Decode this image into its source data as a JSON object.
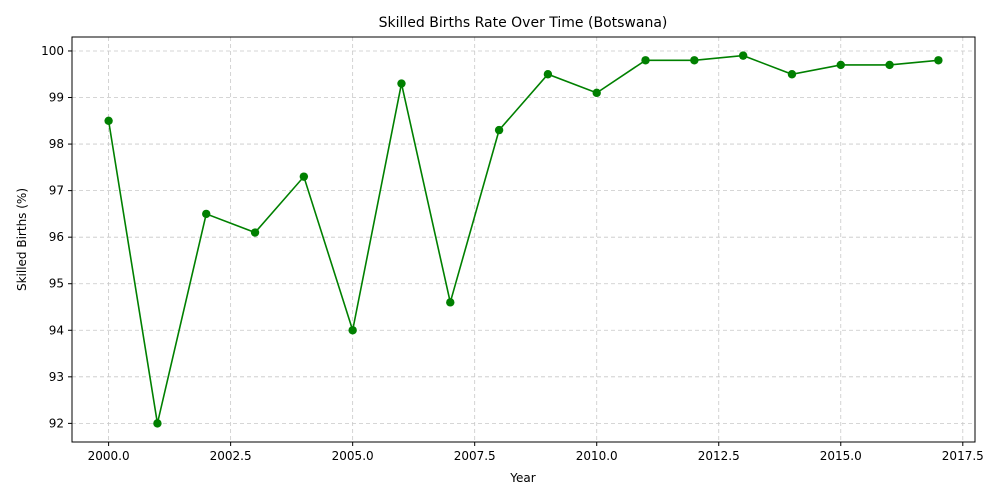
{
  "chart_data": {
    "type": "line",
    "title": "Skilled Births Rate Over Time (Botswana)",
    "xlabel": "Year",
    "ylabel": "Skilled Births (%)",
    "xlim": [
      1999.25,
      2017.75
    ],
    "ylim": [
      91.6,
      100.3
    ],
    "xticks": [
      2000.0,
      2002.5,
      2005.0,
      2007.5,
      2010.0,
      2012.5,
      2015.0,
      2017.5
    ],
    "xtick_labels": [
      "2000.0",
      "2002.5",
      "2005.0",
      "2007.5",
      "2010.0",
      "2012.5",
      "2015.0",
      "2017.5"
    ],
    "yticks": [
      92,
      93,
      94,
      95,
      96,
      97,
      98,
      99,
      100
    ],
    "ytick_labels": [
      "92",
      "93",
      "94",
      "95",
      "96",
      "97",
      "98",
      "99",
      "100"
    ],
    "grid": true,
    "color": "#008000",
    "series": [
      {
        "x": [
          2000,
          2001,
          2002,
          2003,
          2004,
          2005,
          2006,
          2007,
          2008,
          2009,
          2010,
          2011,
          2012,
          2013,
          2014,
          2015,
          2016,
          2017
        ],
        "y": [
          98.5,
          92.0,
          96.5,
          96.1,
          97.3,
          94.0,
          99.3,
          94.6,
          98.3,
          99.5,
          99.1,
          99.8,
          99.8,
          99.9,
          99.5,
          99.7,
          99.7,
          99.8
        ]
      }
    ]
  }
}
